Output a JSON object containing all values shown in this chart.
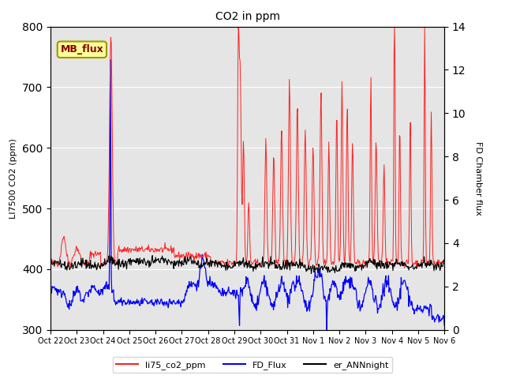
{
  "title": "CO2 in ppm",
  "ylabel_left": "LI7500 CO2 (ppm)",
  "ylabel_right": "FD Chamber flux",
  "ylim_left": [
    300,
    800
  ],
  "ylim_right": [
    0,
    14
  ],
  "background_color": "#e5e5e5",
  "annotation_text": "MB_flux",
  "annotation_color": "#8B0000",
  "annotation_bg": "#FFFF99",
  "line_colors": {
    "li75_co2_ppm": "#FF2020",
    "FD_Flux": "#0000FF",
    "er_ANNnight": "#000000"
  },
  "legend_labels": [
    "li75_co2_ppm",
    "FD_Flux",
    "er_ANNnight"
  ],
  "xtick_labels": [
    "Oct 22",
    "Oct 23",
    "Oct 24",
    "Oct 25",
    "Oct 26",
    "Oct 27",
    "Oct 28",
    "Oct 29",
    "Oct 30",
    "Oct 31",
    "Nov 1",
    "Nov 2",
    "Nov 3",
    "Nov 4",
    "Nov 5",
    "Nov 6"
  ],
  "n_days": 15,
  "pts_per_day": 48
}
